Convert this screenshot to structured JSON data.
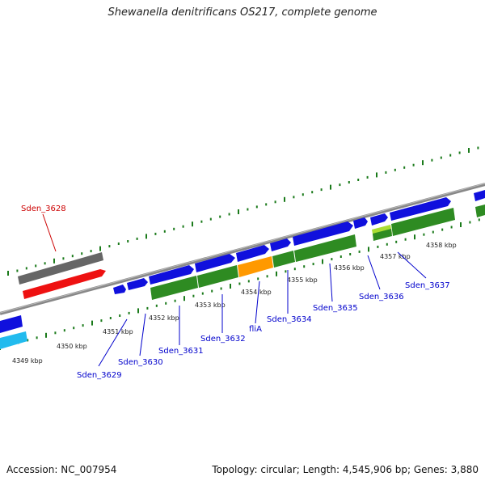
{
  "title": "Shewanella denitrificans OS217, complete genome",
  "footer": {
    "accession": "Accession: NC_007954",
    "summary": "Topology: circular; Length: 4,545,906 bp; Genes: 3,880"
  },
  "kbp_labels": [
    "4349 kbp",
    "4350 kbp",
    "4351 kbp",
    "4352 kbp",
    "4353 kbp",
    "4354 kbp",
    "4355 kbp",
    "4356 kbp",
    "4357 kbp",
    "4358 kbp"
  ],
  "gene_labels": [
    {
      "text": "Sden_3628",
      "color": "#cc0000"
    },
    {
      "text": "Sden_3629",
      "color": "#0000cc"
    },
    {
      "text": "Sden_3630",
      "color": "#0000cc"
    },
    {
      "text": "Sden_3631",
      "color": "#0000cc"
    },
    {
      "text": "Sden_3632",
      "color": "#0000cc"
    },
    {
      "text": "fliA",
      "color": "#0000cc"
    },
    {
      "text": "Sden_3634",
      "color": "#0000cc"
    },
    {
      "text": "Sden_3635",
      "color": "#0000cc"
    },
    {
      "text": "Sden_3636",
      "color": "#0000cc"
    },
    {
      "text": "Sden_3637",
      "color": "#0000cc"
    }
  ],
  "colors": {
    "cds": "#1010dd",
    "gene": "#2e8b22",
    "highlight_gene": "#ff9900",
    "selected": "#ee1111",
    "selected_shadow": "#666666",
    "backbone": "#888888",
    "tick": "#1a7a1a"
  }
}
